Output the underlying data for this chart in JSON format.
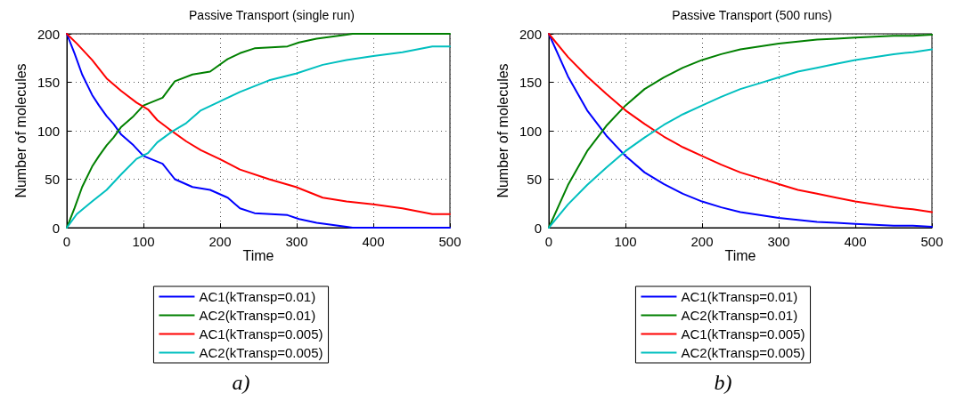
{
  "chart_data": [
    {
      "type": "line",
      "title": "Passive Transport (single run)",
      "xlabel": "Time",
      "ylabel": "Number of molecules",
      "xlim": [
        0,
        500
      ],
      "xticks": [
        0,
        100,
        200,
        300,
        400,
        500
      ],
      "ylim": [
        0,
        200
      ],
      "yticks": [
        0,
        50,
        100,
        150,
        200
      ],
      "grid": true,
      "legend": "bottom",
      "marker": "none",
      "line_style": "solid",
      "annotations": [
        "a)"
      ],
      "series": [
        {
          "name": "AC1(kTransp=0.01)",
          "color": "#0000ff",
          "x": [
            0,
            10,
            20,
            33,
            42,
            52,
            61,
            71,
            87,
            100,
            125,
            141,
            164,
            187,
            210,
            226,
            245,
            288,
            303,
            326,
            365,
            373,
            500
          ],
          "values": [
            200,
            180,
            158,
            137,
            126,
            115,
            107,
            96,
            85,
            74,
            66,
            50,
            42,
            39,
            31,
            20,
            15,
            13,
            9,
            5,
            1,
            0,
            0
          ]
        },
        {
          "name": "AC2(kTransp=0.01)",
          "color": "#008000",
          "x": [
            0,
            10,
            20,
            33,
            42,
            52,
            61,
            71,
            87,
            100,
            125,
            141,
            164,
            187,
            210,
            226,
            245,
            288,
            303,
            326,
            365,
            373,
            500
          ],
          "values": [
            0,
            20,
            42,
            63,
            74,
            85,
            93,
            104,
            115,
            126,
            134,
            151,
            158,
            161,
            174,
            180,
            185,
            187,
            191,
            195,
            199,
            200,
            200
          ]
        },
        {
          "name": "AC1(kTransp=0.005)",
          "color": "#ff0000",
          "x": [
            0,
            13,
            33,
            52,
            71,
            91,
            106,
            118,
            133,
            156,
            175,
            199,
            226,
            264,
            299,
            334,
            365,
            400,
            438,
            477,
            500
          ],
          "values": [
            200,
            190,
            173,
            154,
            141,
            129,
            122,
            111,
            102,
            89,
            80,
            71,
            60,
            50,
            42,
            31,
            27,
            24,
            20,
            14,
            14
          ]
        },
        {
          "name": "AC2(kTransp=0.005)",
          "color": "#00bfbf",
          "x": [
            0,
            13,
            33,
            52,
            71,
            91,
            106,
            118,
            137,
            156,
            175,
            199,
            226,
            264,
            299,
            334,
            365,
            400,
            438,
            477,
            500
          ],
          "values": [
            0,
            14,
            27,
            39,
            55,
            71,
            77,
            88,
            99,
            108,
            121,
            130,
            140,
            152,
            159,
            168,
            173,
            177,
            181,
            187,
            187
          ]
        }
      ]
    },
    {
      "type": "line",
      "title": "Passive Transport (500 runs)",
      "xlabel": "Time",
      "ylabel": "Number of molecules",
      "xlim": [
        0,
        500
      ],
      "xticks": [
        0,
        100,
        200,
        300,
        400,
        500
      ],
      "ylim": [
        0,
        200
      ],
      "yticks": [
        0,
        50,
        100,
        150,
        200
      ],
      "grid": true,
      "legend": "bottom",
      "marker": "none",
      "line_style": "solid",
      "annotations": [
        "b)"
      ],
      "series": [
        {
          "name": "AC1(kTransp=0.01)",
          "color": "#0000ff",
          "x": [
            0,
            25,
            50,
            75,
            100,
            125,
            150,
            175,
            200,
            225,
            250,
            275,
            300,
            325,
            350,
            375,
            400,
            425,
            450,
            475,
            500
          ],
          "values": [
            200,
            156,
            121,
            95,
            74,
            57,
            45,
            35,
            27,
            21,
            16,
            13,
            10,
            8,
            6,
            5,
            4,
            3,
            2,
            2,
            1
          ]
        },
        {
          "name": "AC2(kTransp=0.01)",
          "color": "#008000",
          "x": [
            0,
            25,
            50,
            75,
            100,
            125,
            150,
            175,
            200,
            225,
            250,
            275,
            300,
            325,
            350,
            375,
            400,
            425,
            450,
            475,
            500
          ],
          "values": [
            0,
            44,
            79,
            105,
            126,
            143,
            155,
            165,
            173,
            179,
            184,
            187,
            190,
            192,
            194,
            195,
            196,
            197,
            198,
            198,
            199
          ]
        },
        {
          "name": "AC1(kTransp=0.005)",
          "color": "#ff0000",
          "x": [
            0,
            25,
            50,
            75,
            100,
            125,
            150,
            175,
            200,
            225,
            250,
            275,
            300,
            325,
            350,
            375,
            400,
            425,
            450,
            475,
            500
          ],
          "values": [
            200,
            176,
            156,
            138,
            121,
            107,
            94,
            83,
            74,
            65,
            57,
            51,
            45,
            39,
            35,
            31,
            27,
            24,
            21,
            19,
            16
          ]
        },
        {
          "name": "AC2(kTransp=0.005)",
          "color": "#00bfbf",
          "x": [
            0,
            25,
            50,
            75,
            100,
            125,
            150,
            175,
            200,
            225,
            250,
            275,
            300,
            325,
            350,
            375,
            400,
            425,
            450,
            475,
            500
          ],
          "values": [
            0,
            24,
            44,
            62,
            79,
            93,
            106,
            117,
            126,
            135,
            143,
            149,
            155,
            161,
            165,
            169,
            173,
            176,
            179,
            181,
            184
          ]
        }
      ]
    }
  ]
}
